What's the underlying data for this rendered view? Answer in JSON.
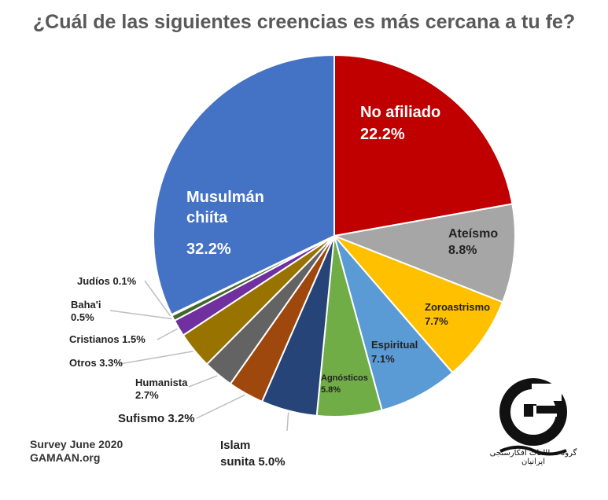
{
  "chart_data": {
    "type": "pie",
    "title": "¿Cuál de las siguientes creencias es más cercana a tu fe?",
    "slices": [
      {
        "label_lines": [
          "No afiliado",
          "22.2%"
        ],
        "value": 22.2,
        "color": "#c00000"
      },
      {
        "label_lines": [
          "Ateísmo",
          "8.8%"
        ],
        "value": 8.8,
        "color": "#a6a6a6"
      },
      {
        "label_lines": [
          "Zoroastrismo",
          "7.7%"
        ],
        "value": 7.7,
        "color": "#ffc000"
      },
      {
        "label_lines": [
          "Espiritual",
          "7.1%"
        ],
        "value": 7.1,
        "color": "#5b9bd5"
      },
      {
        "label_lines": [
          "Agnósticos",
          "5.8%"
        ],
        "value": 5.8,
        "color": "#70ad47"
      },
      {
        "label_lines": [
          "Islam",
          "sunita 5.0%"
        ],
        "value": 5.0,
        "color": "#264478"
      },
      {
        "label_lines": [
          "Sufismo 3.2%"
        ],
        "value": 3.2,
        "color": "#9e480e"
      },
      {
        "label_lines": [
          "Humanista",
          "2.7%"
        ],
        "value": 2.7,
        "color": "#636363"
      },
      {
        "label_lines": [
          "Otros 3.3%"
        ],
        "value": 3.3,
        "color": "#997300"
      },
      {
        "label_lines": [
          "Cristianos 1.5%"
        ],
        "value": 1.5,
        "color": "#7030a0"
      },
      {
        "label_lines": [
          "Baha'i",
          "0.5%"
        ],
        "value": 0.5,
        "color": "#43682b"
      },
      {
        "label_lines": [
          "Judíos 0.1%"
        ],
        "value": 0.1,
        "color": "#2e4d7b"
      },
      {
        "label_lines": [
          "Musulmán",
          "chiíta",
          "32.2%"
        ],
        "value": 32.2,
        "color": "#4472c4"
      }
    ]
  },
  "footer": {
    "line1": "Survey June 2020",
    "line2": "GAMAAN.org"
  },
  "logo": {
    "name": "gamaan-logo",
    "text": "گمان",
    "subtitle": "گروه مطالعات افکارسنجی ایرانیان"
  }
}
